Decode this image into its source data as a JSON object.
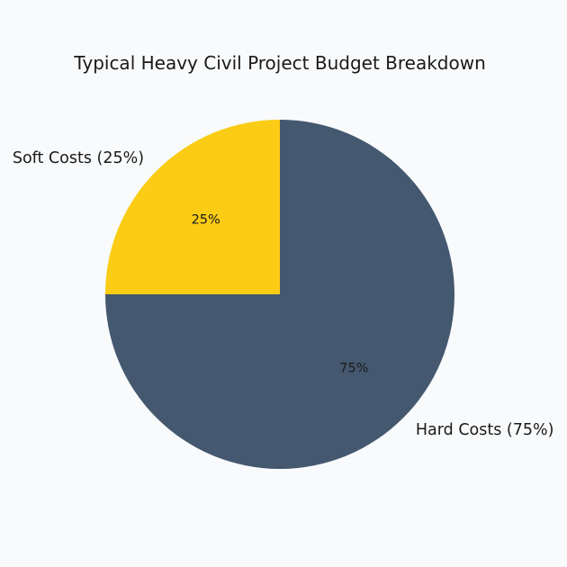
{
  "chart_data": {
    "type": "pie",
    "title": "Typical Heavy Civil Project Budget Breakdown",
    "start_angle_deg": 90,
    "direction": "counterclockwise",
    "slices": [
      {
        "label": "Soft Costs (25%)",
        "value": 25,
        "pct_label": "25%",
        "color": "#facc15"
      },
      {
        "label": "Hard Costs (75%)",
        "value": 75,
        "pct_label": "75%",
        "color": "#44586f"
      }
    ]
  }
}
